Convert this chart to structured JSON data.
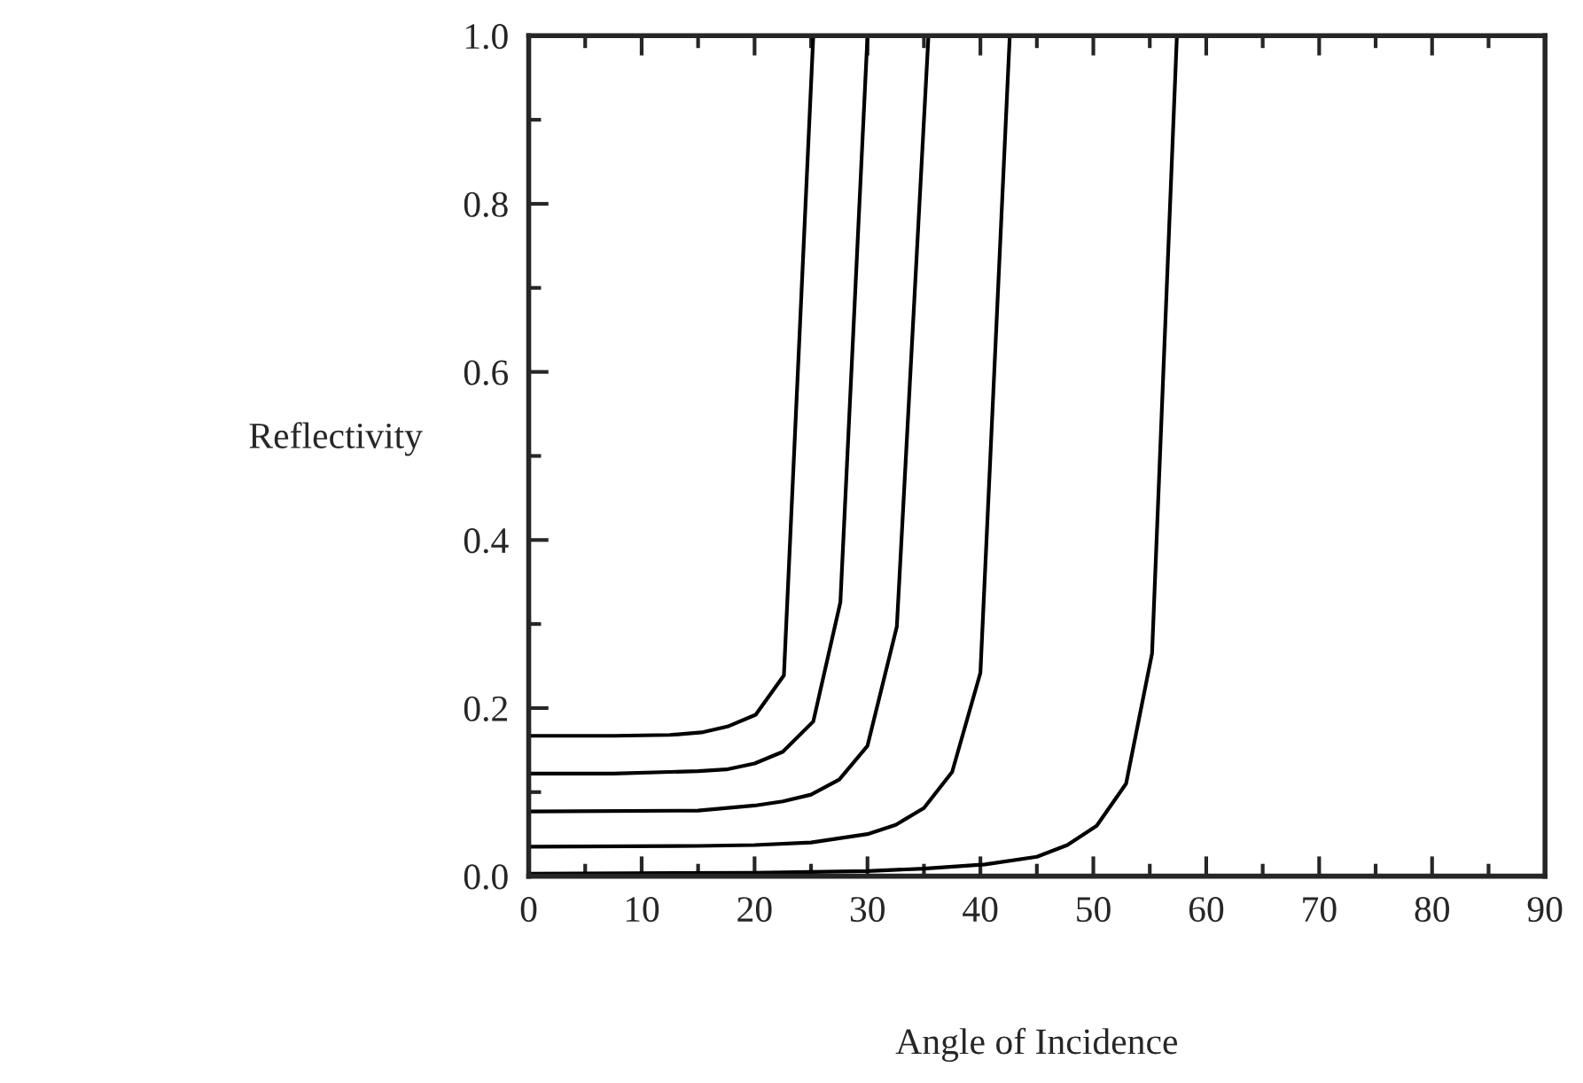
{
  "chart_data": {
    "type": "line",
    "xlabel": "Angle of Incidence",
    "ylabel": "Reflectivity",
    "series": [
      {
        "color": "#000000",
        "x": [
          0,
          7.5,
          12.5,
          15.3,
          17.6,
          20.1,
          22.6,
          25.2
        ],
        "values": [
          0.167,
          0.167,
          0.168,
          0.171,
          0.178,
          0.192,
          0.239,
          1.0
        ]
      },
      {
        "color": "#000000",
        "x": [
          0,
          7.5,
          12.5,
          15,
          17.5,
          20,
          22.5,
          25.2,
          27.6,
          30.0
        ],
        "values": [
          0.122,
          0.122,
          0.124,
          0.125,
          0.127,
          0.134,
          0.148,
          0.184,
          0.326,
          1.0
        ]
      },
      {
        "color": "#000000",
        "x": [
          0,
          15,
          20,
          22.5,
          25,
          27.5,
          30,
          32.6,
          35.4
        ],
        "values": [
          0.077,
          0.078,
          0.084,
          0.089,
          0.097,
          0.115,
          0.155,
          0.297,
          1.0
        ]
      },
      {
        "color": "#000000",
        "x": [
          0,
          15,
          20,
          25,
          30,
          32.5,
          35,
          37.5,
          40,
          42.6
        ],
        "values": [
          0.035,
          0.036,
          0.037,
          0.04,
          0.05,
          0.061,
          0.081,
          0.124,
          0.242,
          1.0
        ]
      },
      {
        "color": "#000000",
        "x": [
          0,
          20,
          30,
          35,
          40.4,
          45,
          47.7,
          50.3,
          52.9,
          55.2,
          57.4
        ],
        "values": [
          0.003,
          0.004,
          0.006,
          0.009,
          0.014,
          0.023,
          0.037,
          0.06,
          0.11,
          0.265,
          1.0
        ]
      }
    ],
    "xlim": [
      0,
      90
    ],
    "ylim": [
      0,
      1.0
    ],
    "xticks": [
      0,
      {
        "value": 5,
        "label": null
      },
      10,
      {
        "value": 15,
        "label": null
      },
      20,
      {
        "value": 25,
        "label": null
      },
      30,
      {
        "value": 35,
        "label": null
      },
      40,
      {
        "value": 45,
        "label": null
      },
      50,
      {
        "value": 55,
        "label": null
      },
      60,
      {
        "value": 65,
        "label": null
      },
      70,
      {
        "value": 75,
        "label": null
      },
      80,
      {
        "value": 85,
        "label": null
      },
      90
    ],
    "yticks": [
      {
        "value": 0,
        "label": "0.0"
      },
      {
        "value": 0.1,
        "label": null
      },
      0.2,
      {
        "value": 0.3,
        "label": null
      },
      0.4,
      {
        "value": 0.5,
        "label": null
      },
      0.6,
      {
        "value": 0.7,
        "label": null
      },
      0.8,
      {
        "value": 0.9,
        "label": null
      },
      {
        "value": 1.0,
        "label": "1.0"
      }
    ],
    "grid": false,
    "legend": false,
    "marker": "none",
    "line_style": "solid"
  }
}
